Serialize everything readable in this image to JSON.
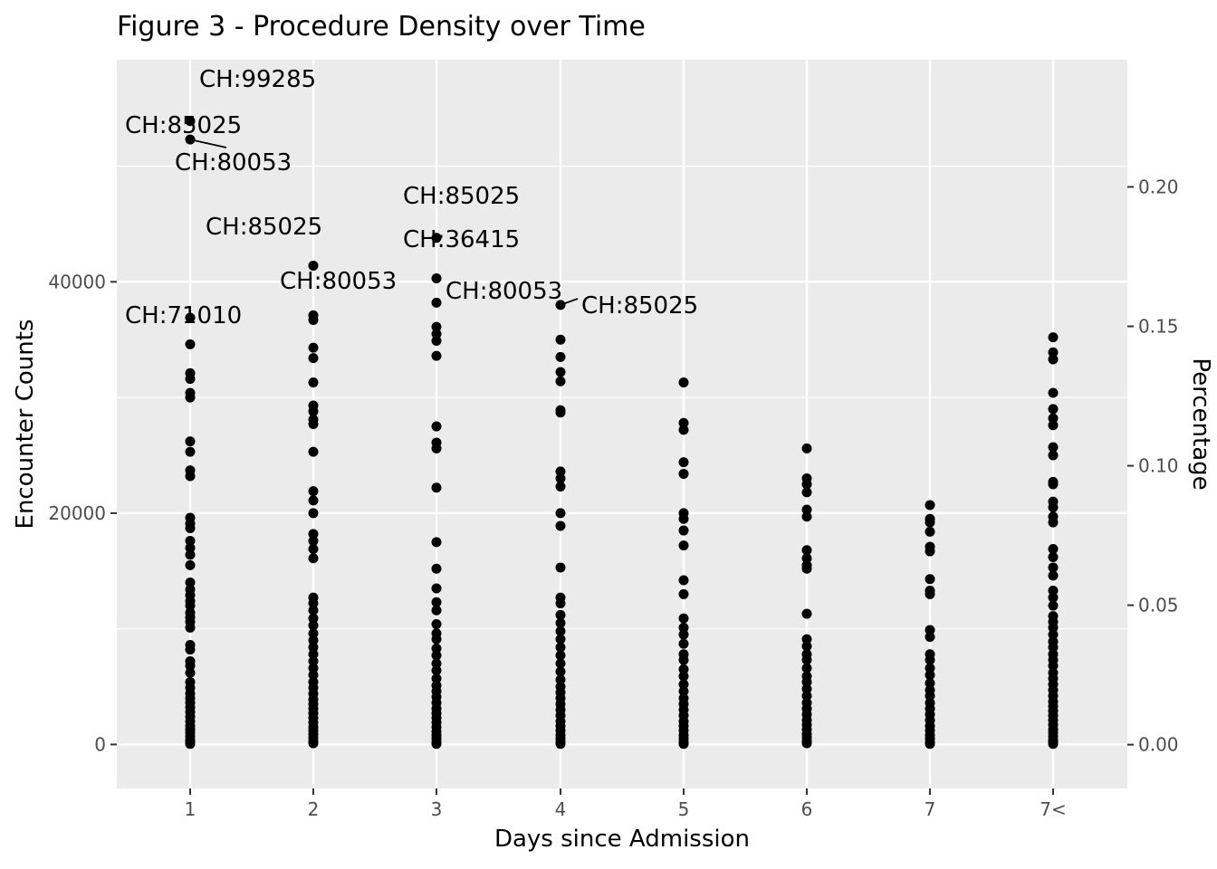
{
  "chart_data": {
    "type": "scatter",
    "title": "Figure 3 - Procedure Density over Time",
    "xlabel": "Days since Admission",
    "ylabel": "Encounter Counts",
    "y2label": "Percentage",
    "categories": [
      "1",
      "2",
      "3",
      "4",
      "5",
      "6",
      "7",
      "7<"
    ],
    "ylim": [
      -3800,
      59200
    ],
    "yticks": [
      0,
      20000,
      40000
    ],
    "ytick_labels": [
      "0",
      "20000",
      "40000"
    ],
    "y2lim": [
      -0.0157,
      0.2456
    ],
    "y2ticks": [
      0.0,
      0.05,
      0.1,
      0.15,
      0.2
    ],
    "y2tick_labels": [
      "0.00",
      "0.05",
      "0.10",
      "0.15",
      "0.20"
    ],
    "grid": true,
    "series": [
      {
        "values": [
          [
            53900,
            52300,
            36900,
            34600,
            32100,
            31600,
            30400,
            30000,
            26200,
            25300,
            23700,
            23200,
            19600,
            19100,
            18700,
            17600,
            17000,
            16400,
            15500,
            14000,
            13400,
            12900,
            12400,
            12000,
            11400,
            11000,
            10600,
            10100,
            8600,
            8200,
            7200,
            6800,
            6200,
            5400,
            4900,
            4400,
            4000,
            3600,
            3200,
            2800,
            2400,
            2000,
            1600,
            1300,
            1000,
            700,
            400,
            200,
            50
          ],
          [
            41400,
            37100,
            36700,
            34300,
            33400,
            31300,
            29300,
            28800,
            28100,
            27700,
            25300,
            21900,
            21100,
            20000,
            18200,
            17600,
            16900,
            16100,
            12700,
            12200,
            11600,
            10900,
            10300,
            9600,
            9000,
            8400,
            7800,
            7200,
            6600,
            6000,
            5400,
            4900,
            4400,
            3900,
            3500,
            3100,
            2700,
            2300,
            1900,
            1500,
            1200,
            900,
            600,
            300,
            100
          ],
          [
            43800,
            40300,
            38200,
            36100,
            35500,
            34900,
            33600,
            27500,
            26100,
            25600,
            22200,
            17500,
            15200,
            13500,
            12300,
            11600,
            10400,
            9600,
            9100,
            8300,
            7700,
            7000,
            6400,
            5700,
            5100,
            4600,
            4100,
            3600,
            3100,
            2700,
            2300,
            1900,
            1500,
            1100,
            800,
            500,
            200,
            50
          ],
          [
            38000,
            35000,
            33500,
            32200,
            31400,
            28900,
            28700,
            23600,
            23000,
            22300,
            20000,
            18900,
            15300,
            12700,
            12200,
            11200,
            10500,
            9800,
            9100,
            8400,
            7700,
            7000,
            6300,
            5600,
            5000,
            4500,
            4000,
            3500,
            3000,
            2500,
            2000,
            1600,
            1200,
            800,
            500,
            200,
            50
          ],
          [
            31300,
            27800,
            27200,
            24400,
            23400,
            20000,
            19500,
            18500,
            17200,
            14200,
            13000,
            10900,
            10100,
            9500,
            8700,
            7800,
            7300,
            6500,
            5900,
            5200,
            4600,
            4000,
            3500,
            3000,
            2500,
            2000,
            1600,
            1200,
            800,
            500,
            200,
            50
          ],
          [
            25600,
            23000,
            22500,
            21800,
            20300,
            19700,
            16800,
            16100,
            15500,
            15200,
            11300,
            9100,
            8500,
            7800,
            7300,
            6600,
            5900,
            5400,
            4800,
            4200,
            3600,
            3100,
            2600,
            2100,
            1700,
            1300,
            900,
            600,
            300,
            100
          ],
          [
            20700,
            19500,
            19200,
            18400,
            17100,
            16700,
            14300,
            13300,
            13000,
            9900,
            9300,
            7800,
            7300,
            6600,
            6000,
            5300,
            4700,
            4200,
            3600,
            3100,
            2600,
            2100,
            1600,
            1200,
            800,
            500,
            200,
            50
          ],
          [
            35200,
            33900,
            33300,
            30400,
            29000,
            28200,
            27600,
            25700,
            25000,
            22700,
            22500,
            21000,
            20500,
            19700,
            19200,
            16900,
            16200,
            15300,
            14600,
            13300,
            12700,
            12000,
            11100,
            10600,
            10100,
            9500,
            8900,
            8400,
            7800,
            7300,
            6800,
            6200,
            5700,
            5200,
            4700,
            4200,
            3700,
            3300,
            2900,
            2500,
            2100,
            1700,
            1300,
            1000,
            700,
            400,
            200,
            50
          ]
        ]
      }
    ],
    "annotations": [
      {
        "text": "CH:99285",
        "x": "1",
        "y": 53900
      },
      {
        "text": "CH:85025",
        "x": "1",
        "y": 52300
      },
      {
        "text": "CH:80053",
        "x": "1",
        "y": 52300
      },
      {
        "text": "CH:71010",
        "x": "1",
        "y": 36900
      },
      {
        "text": "CH:85025",
        "x": "2",
        "y": 41400
      },
      {
        "text": "CH:80053",
        "x": "2",
        "y": 37100
      },
      {
        "text": "CH:85025",
        "x": "3",
        "y": 43800
      },
      {
        "text": "CH:36415",
        "x": "3",
        "y": 40300
      },
      {
        "text": "CH:80053",
        "x": "4",
        "y": 38000
      },
      {
        "text": "CH:85025",
        "x": "4",
        "y": 38000
      }
    ]
  }
}
